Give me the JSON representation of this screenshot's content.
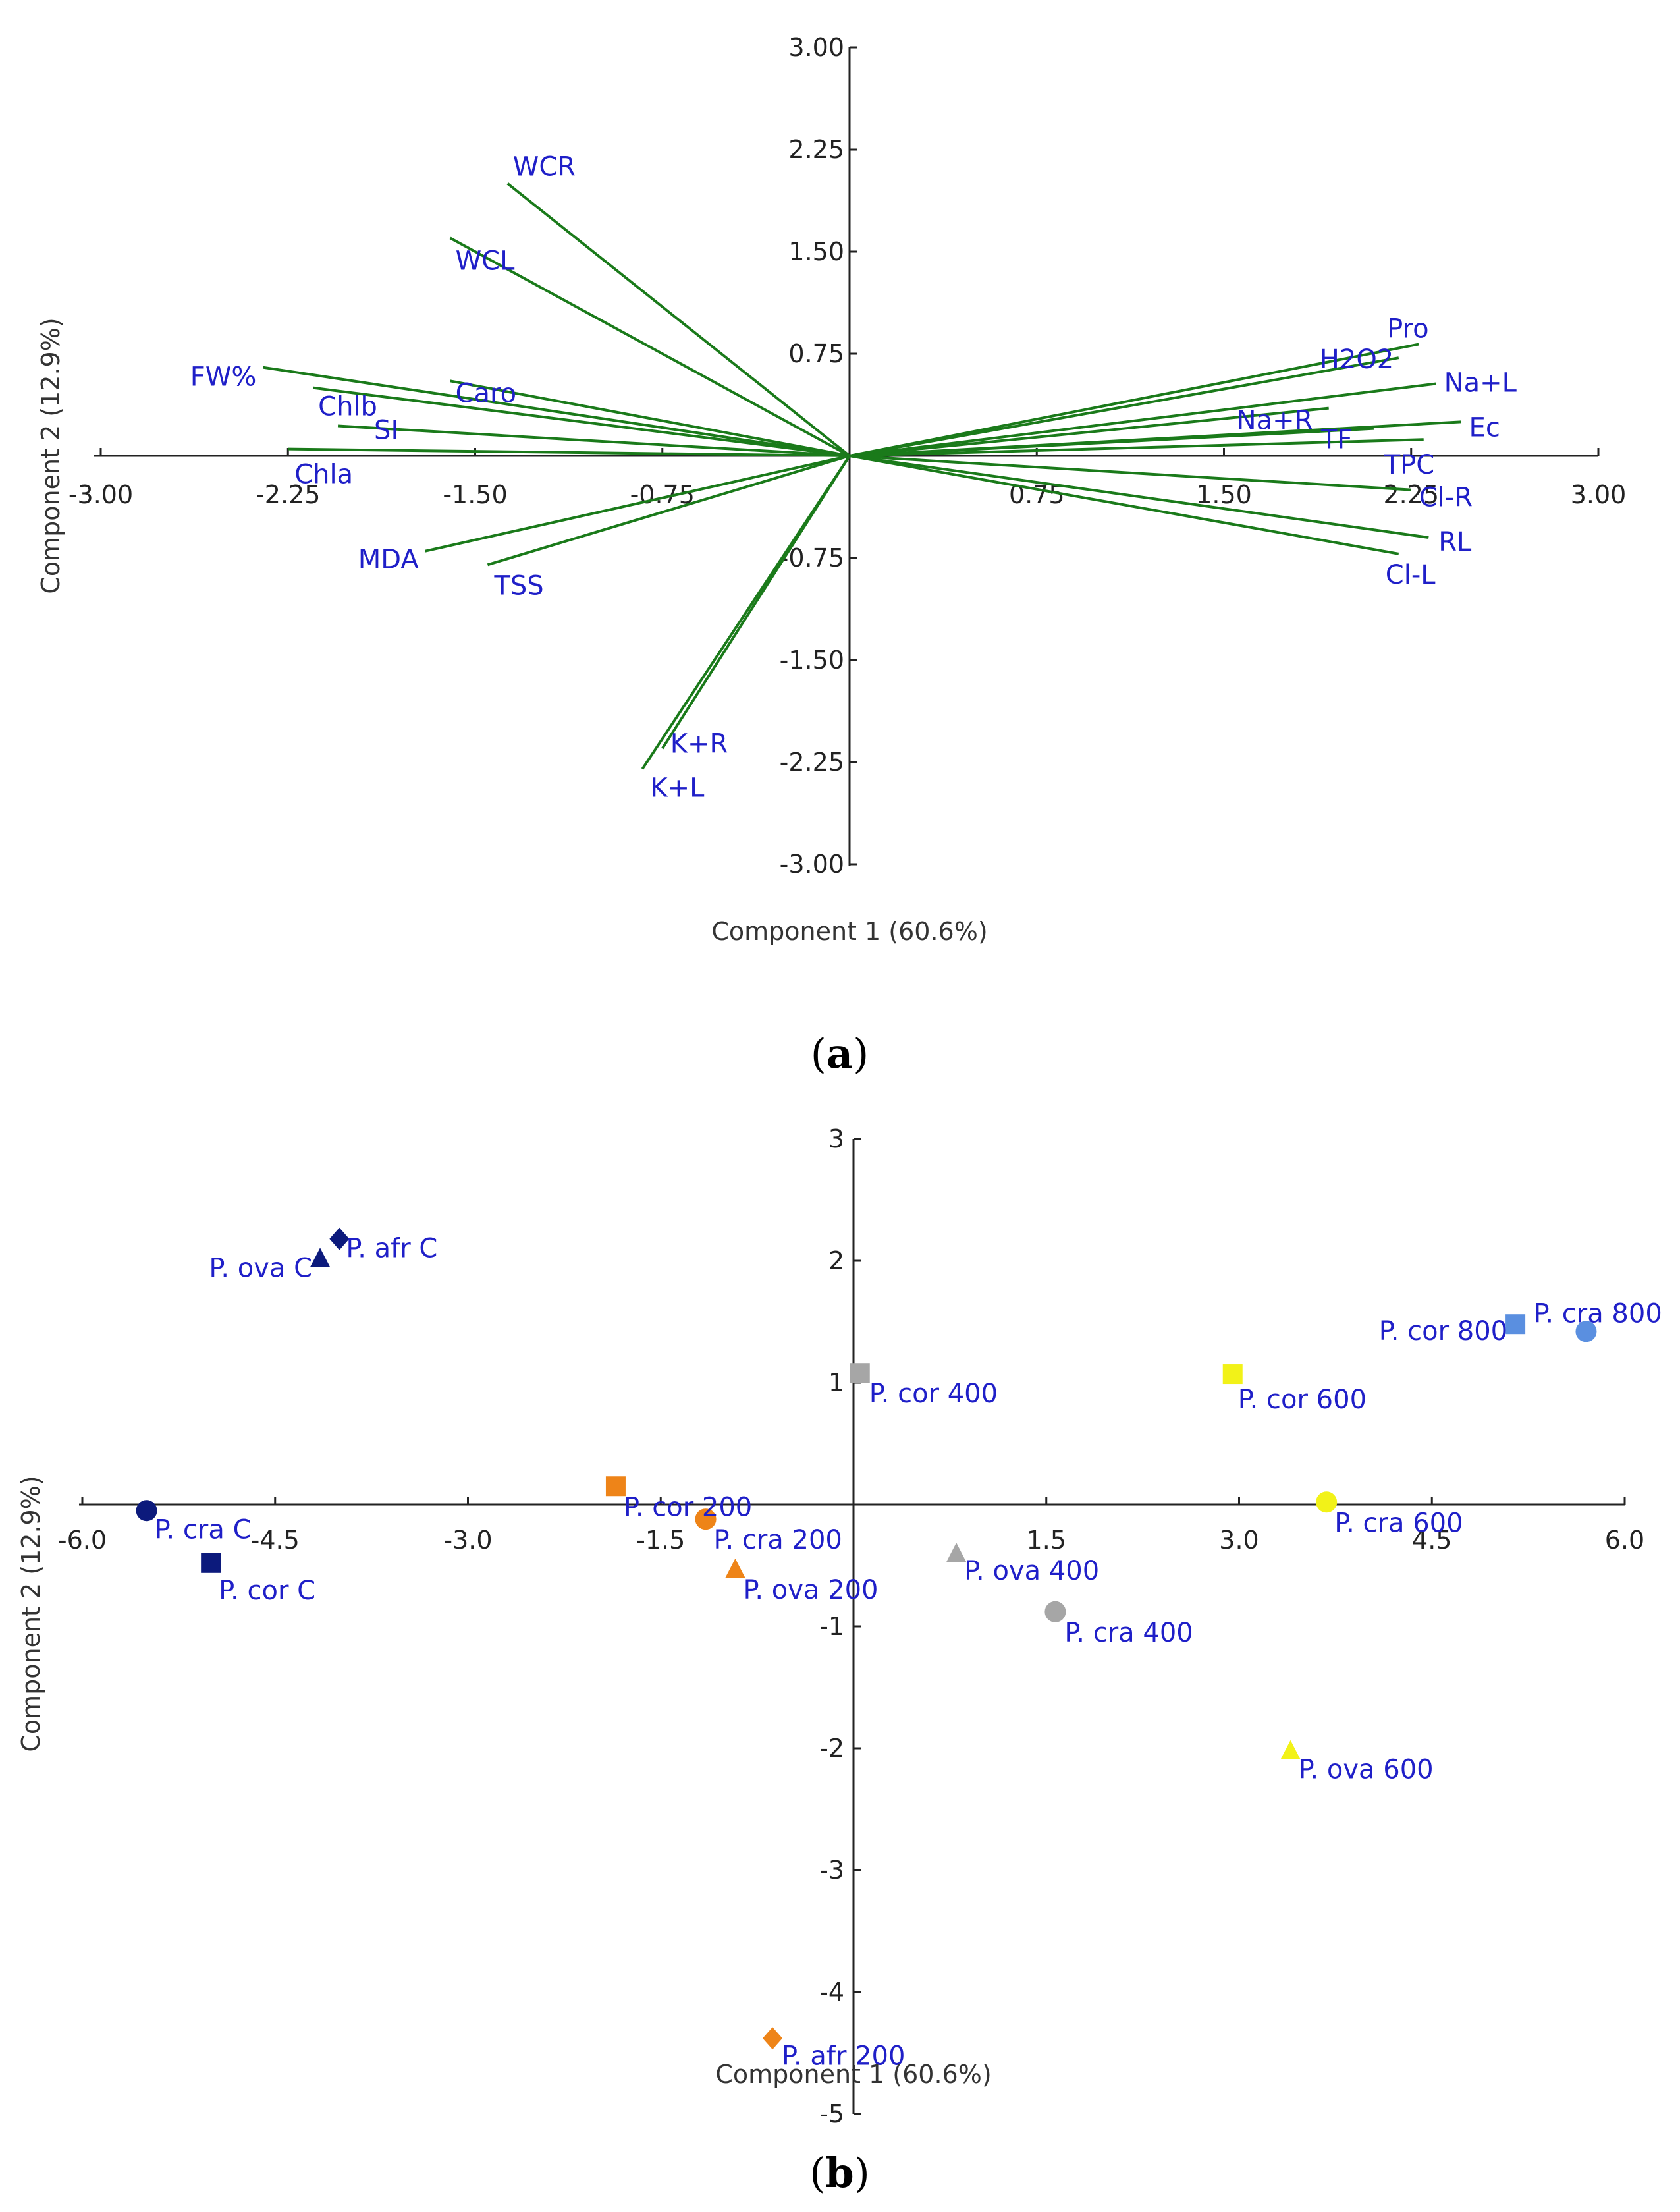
{
  "chart_data": [
    {
      "type": "scatter",
      "subtype": "loading-vectors",
      "panel": "(a)",
      "panel_letter": "a",
      "xlabel": "Component 1 (60.6%)",
      "ylabel": "Component 2 (12.9%)",
      "xlim": [
        -3.0,
        3.0
      ],
      "ylim": [
        -3.0,
        3.0
      ],
      "x_ticks": [
        "-3.00",
        "-2.25",
        "-1.50",
        "-0.75",
        "0.75",
        "1.50",
        "2.25",
        "3.00"
      ],
      "y_ticks": [
        "3.00",
        "2.25",
        "1.50",
        "0.75",
        "-0.75",
        "-1.50",
        "-2.25",
        "-3.00"
      ],
      "vector_color": "#1a7a1a",
      "label_color": "#1f1fc8",
      "vectors": [
        {
          "label": "WCR",
          "x": -1.37,
          "y": 2.0
        },
        {
          "label": "WCL",
          "x": -1.6,
          "y": 1.6
        },
        {
          "label": "FW%",
          "x": -2.35,
          "y": 0.65
        },
        {
          "label": "Caro",
          "x": -1.6,
          "y": 0.55
        },
        {
          "label": "Chlb",
          "x": -2.15,
          "y": 0.5
        },
        {
          "label": "SI",
          "x": -2.05,
          "y": 0.22
        },
        {
          "label": "Chla",
          "x": -2.25,
          "y": 0.05
        },
        {
          "label": "MDA",
          "x": -1.7,
          "y": -0.7
        },
        {
          "label": "TSS",
          "x": -1.45,
          "y": -0.8
        },
        {
          "label": "K+R",
          "x": -0.75,
          "y": -2.15
        },
        {
          "label": "K+L",
          "x": -0.83,
          "y": -2.3
        },
        {
          "label": "Pro",
          "x": 2.28,
          "y": 0.82
        },
        {
          "label": "H2O2",
          "x": 2.2,
          "y": 0.72
        },
        {
          "label": "Na+L",
          "x": 2.35,
          "y": 0.53
        },
        {
          "label": "Na+R",
          "x": 1.92,
          "y": 0.35
        },
        {
          "label": "Ec",
          "x": 2.45,
          "y": 0.25
        },
        {
          "label": "TF",
          "x": 2.1,
          "y": 0.2
        },
        {
          "label": "TPC",
          "x": 2.3,
          "y": 0.12
        },
        {
          "label": "Cl-R",
          "x": 2.25,
          "y": -0.25
        },
        {
          "label": "RL",
          "x": 2.32,
          "y": -0.6
        },
        {
          "label": "Cl-L",
          "x": 2.2,
          "y": -0.72
        }
      ]
    },
    {
      "type": "scatter",
      "subtype": "score-plot",
      "panel": "(b)",
      "panel_letter": "b",
      "xlabel": "Component 1 (60.6%)",
      "ylabel": "Component 2 (12.9%)",
      "xlim": [
        -6.0,
        6.0
      ],
      "ylim": [
        -5.0,
        3.0
      ],
      "x_ticks": [
        "-6.0",
        "-4.5",
        "-3.0",
        "-1.5",
        "1.5",
        "3.0",
        "4.5",
        "6.0"
      ],
      "y_ticks": [
        "3",
        "2",
        "1",
        "-1",
        "-2",
        "-3",
        "-4",
        "-5"
      ],
      "label_color": "#1f1fc8",
      "points": [
        {
          "label": "P. ova C",
          "x": -4.15,
          "y": 2.02,
          "marker": "triangle",
          "color": "#0c1a7c"
        },
        {
          "label": "P. afr C",
          "x": -4.0,
          "y": 2.18,
          "marker": "diamond",
          "color": "#0c1a7c"
        },
        {
          "label": "P. cra C",
          "x": -5.5,
          "y": -0.05,
          "marker": "circle",
          "color": "#0c1a7c"
        },
        {
          "label": "P. cor C",
          "x": -5.0,
          "y": -0.48,
          "marker": "square",
          "color": "#0c1a7c"
        },
        {
          "label": "P. cor 200",
          "x": -1.85,
          "y": 0.15,
          "marker": "square",
          "color": "#ee8418"
        },
        {
          "label": "P. cra 200",
          "x": -1.15,
          "y": -0.12,
          "marker": "circle",
          "color": "#ee8418"
        },
        {
          "label": "P. ova 200",
          "x": -0.92,
          "y": -0.53,
          "marker": "triangle",
          "color": "#ee8418"
        },
        {
          "label": "P. afr 200",
          "x": -0.63,
          "y": -4.38,
          "marker": "diamond",
          "color": "#ee8418"
        },
        {
          "label": "P. cor 400",
          "x": 0.05,
          "y": 1.08,
          "marker": "square",
          "color": "#a6a6a6"
        },
        {
          "label": "P. ova 400",
          "x": 0.8,
          "y": -0.4,
          "marker": "triangle",
          "color": "#a6a6a6"
        },
        {
          "label": "P. cra 400",
          "x": 1.57,
          "y": -0.88,
          "marker": "circle",
          "color": "#a6a6a6"
        },
        {
          "label": "P. cor 600",
          "x": 2.95,
          "y": 1.07,
          "marker": "square",
          "color": "#f2f218"
        },
        {
          "label": "P. cra 600",
          "x": 3.68,
          "y": 0.02,
          "marker": "circle",
          "color": "#f2f218"
        },
        {
          "label": "P. ova 600",
          "x": 3.4,
          "y": -2.02,
          "marker": "triangle",
          "color": "#f2f218"
        },
        {
          "label": "P. cor 800",
          "x": 5.15,
          "y": 1.48,
          "marker": "square",
          "color": "#5a8fe0"
        },
        {
          "label": "P. cra 800",
          "x": 5.7,
          "y": 1.42,
          "marker": "circle",
          "color": "#5a8fe0"
        }
      ]
    }
  ]
}
